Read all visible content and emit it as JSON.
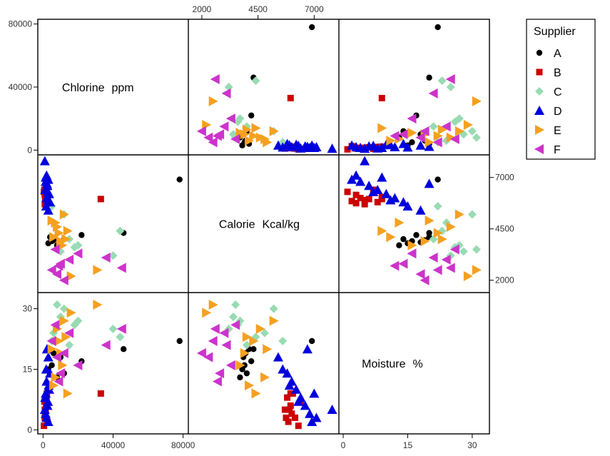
{
  "chart_data": {
    "type": "scatter",
    "subtype": "scatter-plot-matrix",
    "variables": [
      {
        "name": "Chlorine",
        "unit": "ppm"
      },
      {
        "name": "Calorie",
        "unit": "Kcal/kg"
      },
      {
        "name": "Moisture",
        "unit": "%"
      }
    ],
    "ranges": {
      "Chlorine": [
        -3000,
        83000
      ],
      "Calorie": [
        1400,
        8100
      ],
      "Moisture": [
        -1,
        34
      ]
    },
    "ticks": {
      "Chlorine": [
        0,
        40000,
        80000
      ],
      "Calorie": [
        2000,
        4500,
        7000
      ],
      "Moisture": [
        0,
        15,
        30
      ]
    },
    "tick_labels": {
      "Chlorine": [
        "0",
        "40000",
        "80000"
      ],
      "Calorie": [
        "2000",
        "4500",
        "7000"
      ],
      "Moisture": [
        "0",
        "15",
        "30"
      ]
    },
    "legend": {
      "title": "Supplier",
      "position": "right"
    },
    "series": [
      {
        "name": "A",
        "color": "#000000",
        "marker": "circle",
        "points": [
          [
            78000,
            6900,
            22
          ],
          [
            46000,
            4300,
            20
          ],
          [
            22000,
            4200,
            17
          ],
          [
            5000,
            3900,
            16
          ],
          [
            3000,
            3800,
            15
          ],
          [
            8000,
            3700,
            13
          ],
          [
            10000,
            3850,
            18
          ],
          [
            4000,
            4100,
            20
          ],
          [
            6000,
            3950,
            19
          ],
          [
            12000,
            4000,
            14
          ]
        ]
      },
      {
        "name": "B",
        "color": "#cc0000",
        "marker": "square",
        "points": [
          [
            33000,
            5950,
            9
          ],
          [
            1000,
            6150,
            3
          ],
          [
            1500,
            5900,
            5
          ],
          [
            2000,
            5800,
            8
          ],
          [
            500,
            6300,
            1
          ],
          [
            1200,
            6000,
            4
          ],
          [
            1800,
            5950,
            6
          ],
          [
            2500,
            5850,
            2
          ],
          [
            800,
            6400,
            7
          ],
          [
            1500,
            5750,
            3
          ],
          [
            2200,
            6050,
            9
          ],
          [
            1000,
            5700,
            5
          ]
        ]
      },
      {
        "name": "C",
        "color": "#99dbb3",
        "marker": "diamond",
        "points": [
          [
            44000,
            4400,
            23
          ],
          [
            40000,
            3200,
            25
          ],
          [
            20000,
            3700,
            27
          ],
          [
            12000,
            5200,
            30
          ],
          [
            8000,
            3500,
            31
          ],
          [
            15000,
            4000,
            21
          ],
          [
            6000,
            4800,
            24
          ],
          [
            10000,
            3400,
            28
          ],
          [
            5000,
            5600,
            22
          ],
          [
            18000,
            3600,
            26
          ]
        ]
      },
      {
        "name": "D",
        "color": "#0000dd",
        "marker": "triangle-up",
        "points": [
          [
            1000,
            7800,
            5
          ],
          [
            2000,
            7100,
            3
          ],
          [
            3000,
            6900,
            2
          ],
          [
            1500,
            6800,
            4
          ],
          [
            2500,
            6600,
            6
          ],
          [
            1200,
            6400,
            8
          ],
          [
            3500,
            6200,
            10
          ],
          [
            2000,
            6000,
            12
          ],
          [
            4000,
            5800,
            14
          ],
          [
            1800,
            5600,
            15
          ],
          [
            3000,
            5400,
            18
          ],
          [
            2200,
            6700,
            20
          ],
          [
            1500,
            7000,
            9
          ],
          [
            2800,
            6300,
            7
          ],
          [
            3200,
            5900,
            11
          ]
        ]
      },
      {
        "name": "E",
        "color": "#f5a020",
        "marker": "triangle-right",
        "points": [
          [
            31000,
            2500,
            31
          ],
          [
            12000,
            5200,
            27
          ],
          [
            8000,
            4600,
            25
          ],
          [
            9000,
            4300,
            22
          ],
          [
            10000,
            3900,
            19
          ],
          [
            11000,
            3700,
            16
          ],
          [
            7000,
            4800,
            13
          ],
          [
            6000,
            4100,
            11
          ],
          [
            14000,
            4400,
            9
          ],
          [
            16000,
            2200,
            29
          ],
          [
            5000,
            4900,
            20
          ],
          [
            13000,
            4000,
            23
          ]
        ]
      },
      {
        "name": "F",
        "color": "#cc33cc",
        "marker": "triangle-left",
        "points": [
          [
            45000,
            2600,
            25
          ],
          [
            36000,
            3100,
            21
          ],
          [
            20000,
            3300,
            16
          ],
          [
            8000,
            2300,
            18
          ],
          [
            5000,
            2500,
            22
          ],
          [
            10000,
            2800,
            14
          ],
          [
            15000,
            3000,
            24
          ],
          [
            12000,
            2000,
            19
          ],
          [
            7000,
            3500,
            26
          ],
          [
            9000,
            2700,
            12
          ]
        ]
      }
    ]
  }
}
